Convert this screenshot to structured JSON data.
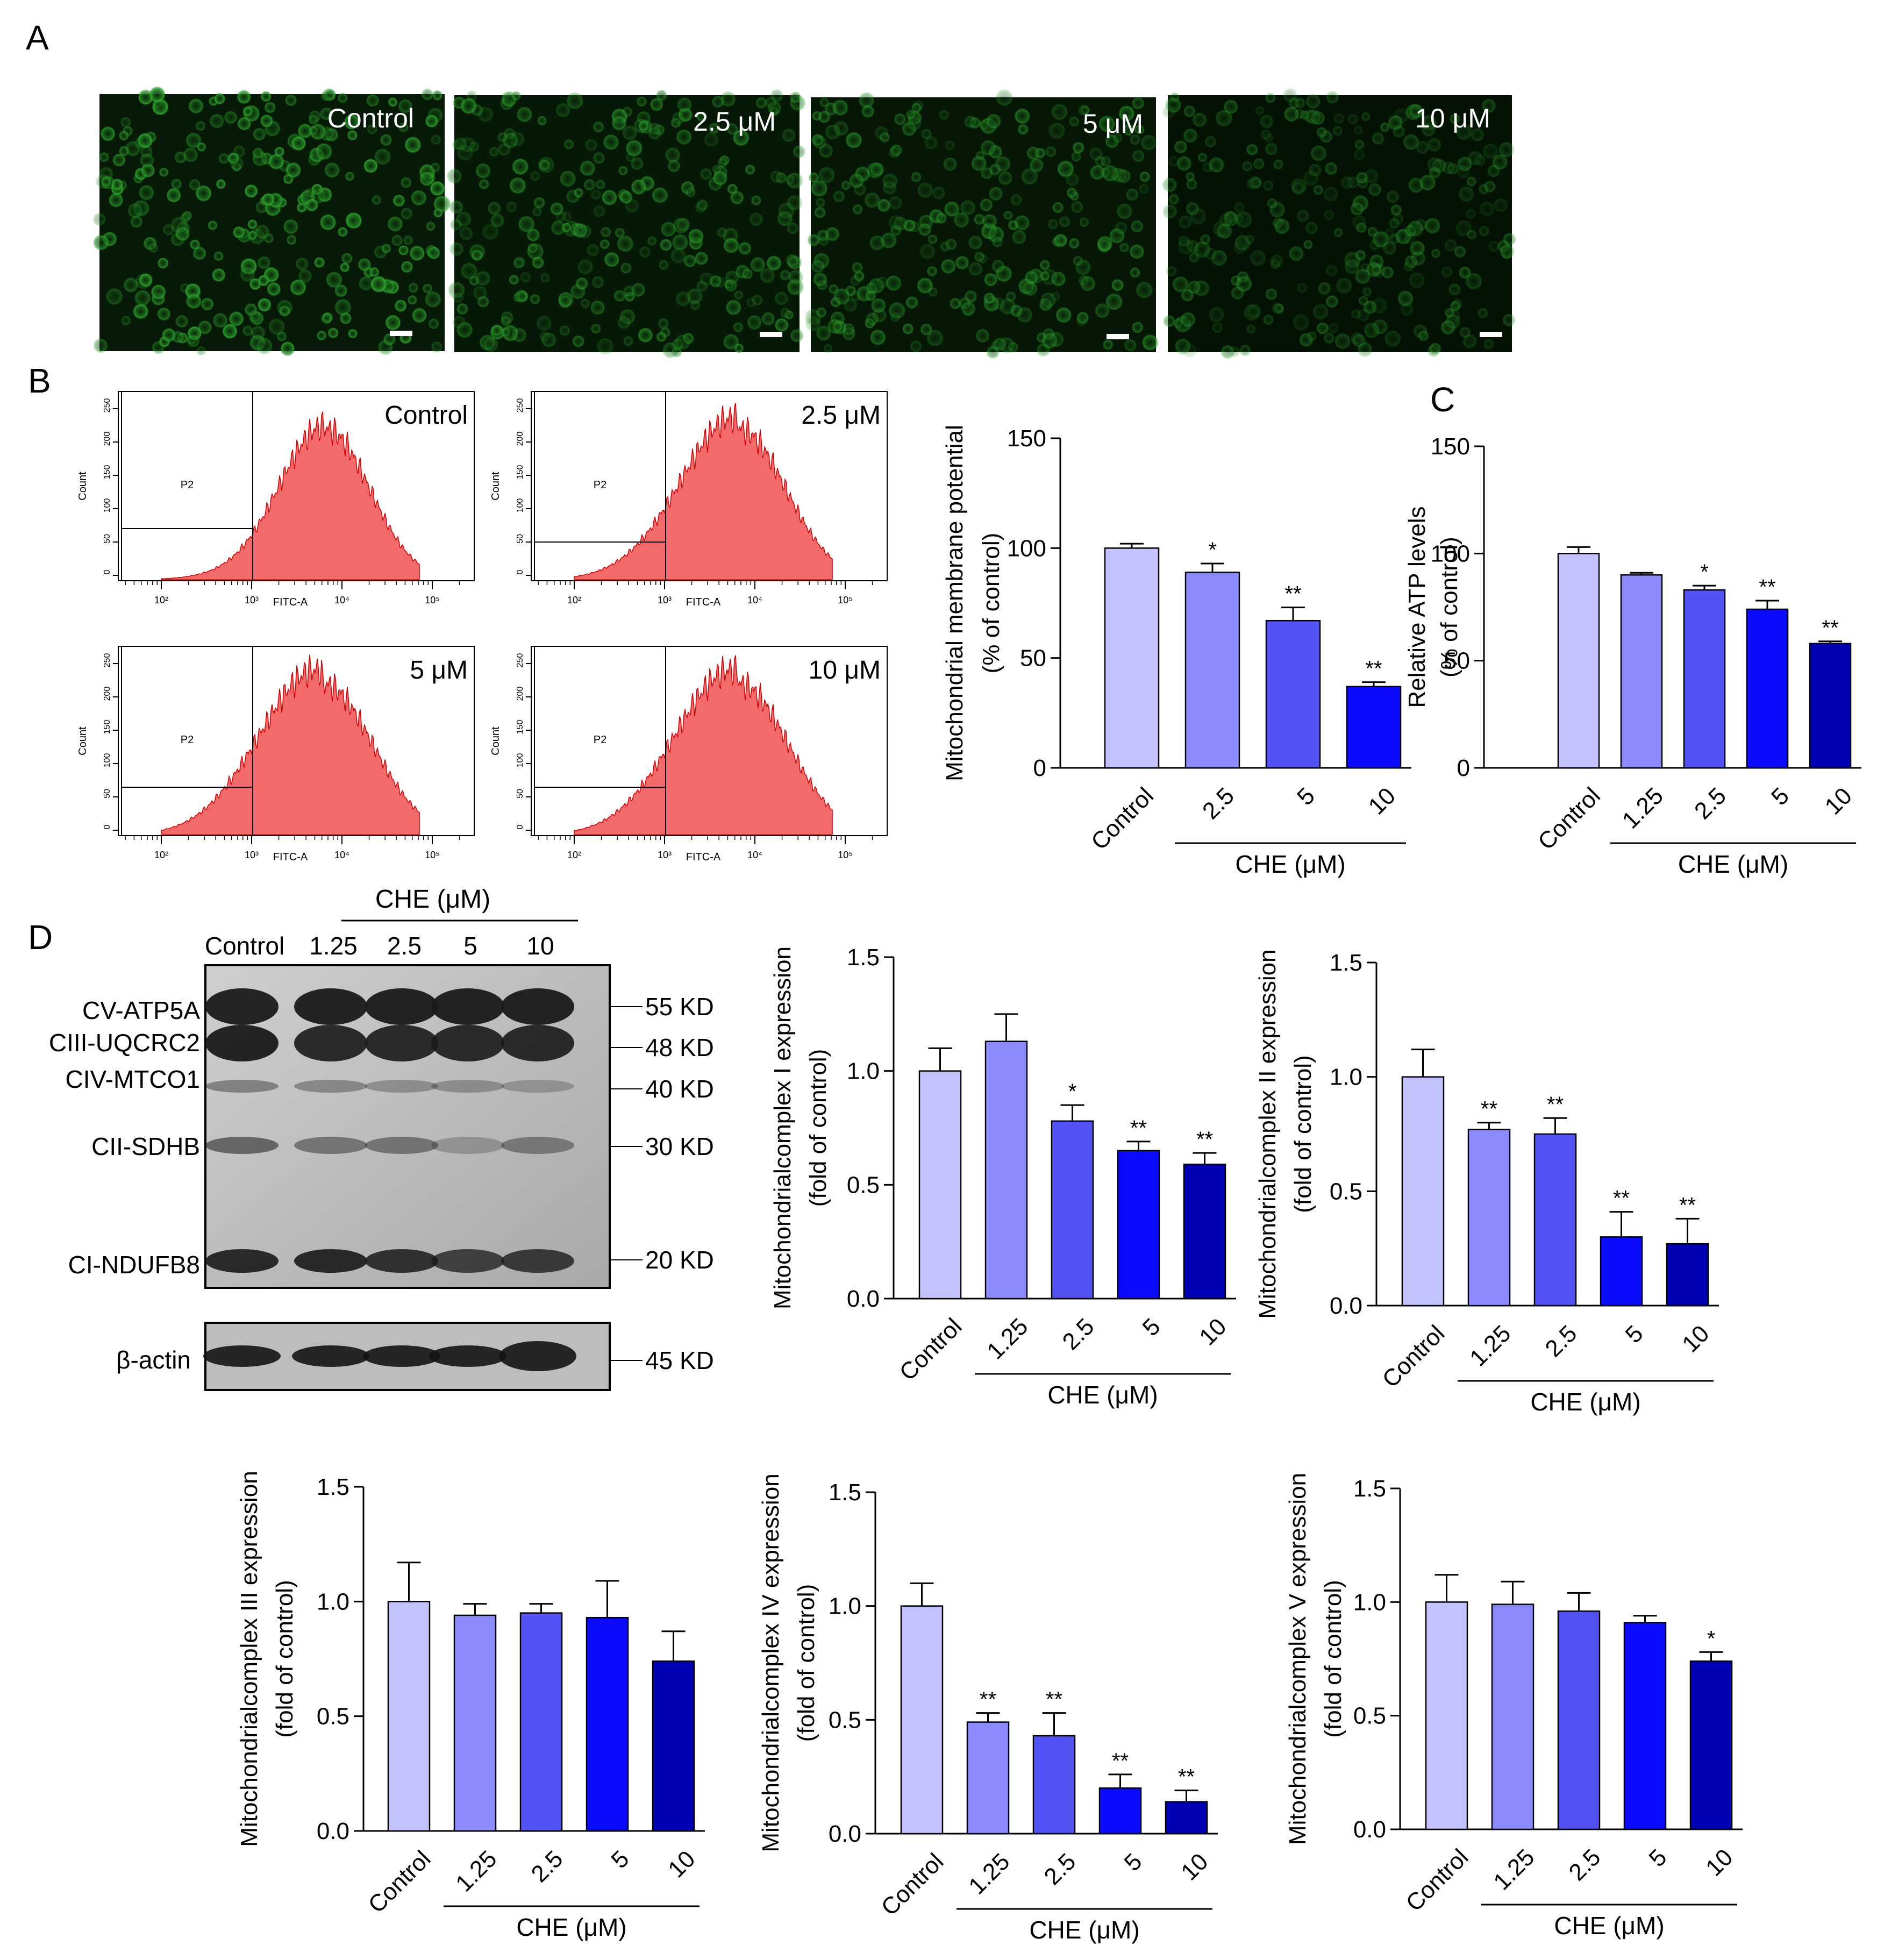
{
  "panels": {
    "A": {
      "letter": "A",
      "images": [
        {
          "label": "Control"
        },
        {
          "label": "2.5 μM"
        },
        {
          "label": "5 μM"
        },
        {
          "label": "10 μM"
        }
      ]
    },
    "B": {
      "letter": "B",
      "histograms": [
        {
          "label": "Control",
          "gate": "P2",
          "xlabel": "FITC-A",
          "ylabel": "Count"
        },
        {
          "label": "2.5 μM",
          "gate": "P2",
          "xlabel": "FITC-A",
          "ylabel": "Count"
        },
        {
          "label": "5 μM",
          "gate": "P2",
          "xlabel": "FITC-A",
          "ylabel": "Count"
        },
        {
          "label": "10 μM",
          "gate": "P2",
          "xlabel": "FITC-A",
          "ylabel": "Count"
        }
      ],
      "hist_x_ticks": [
        "10²",
        "10³",
        "10⁴",
        "10⁵"
      ],
      "hist_y_ticks": [
        "0",
        "50",
        "100",
        "150",
        "200",
        "250"
      ]
    },
    "C": {
      "letter": "C"
    },
    "D": {
      "letter": "D",
      "blot": {
        "group_label": "CHE (μM)",
        "lanes": [
          "Control",
          "1.25",
          "2.5",
          "5",
          "10"
        ],
        "bands": [
          "CV-ATP5A",
          "CIII-UQCRC2",
          "CIV-MTCO1",
          "CII-SDHB",
          "CI-NDUFB8"
        ],
        "loading": "β-actin",
        "markers": [
          "55 KD",
          "48 KD",
          "40 KD",
          "30 KD",
          "20 KD",
          "45 KD"
        ]
      }
    }
  },
  "chart_data": [
    {
      "id": "mmp",
      "type": "bar",
      "ylabel": [
        "Mitochondrial membrane potential",
        "(% of control)"
      ],
      "categories": [
        "Control",
        "2.5",
        "5",
        "10"
      ],
      "values": [
        100,
        89,
        67,
        37
      ],
      "errors": [
        2,
        4,
        6,
        2
      ],
      "significance": [
        "",
        "*",
        "**",
        "**"
      ],
      "ylim": [
        0,
        150
      ],
      "yticks": [
        "0",
        "50",
        "100",
        "150"
      ],
      "group_label": "CHE (μM)",
      "colors": [
        "#c2c2ff",
        "#8b8bff",
        "#5252f5",
        "#0a0aff"
      ]
    },
    {
      "id": "atp",
      "type": "bar",
      "ylabel": [
        "Relative ATP levels",
        "(% of control)"
      ],
      "categories": [
        "Control",
        "1.25",
        "2.5",
        "5",
        "10"
      ],
      "values": [
        100,
        90,
        83,
        74,
        58
      ],
      "errors": [
        3,
        1,
        2,
        4,
        1
      ],
      "significance": [
        "",
        "",
        "*",
        "**",
        "**"
      ],
      "ylim": [
        0,
        150
      ],
      "yticks": [
        "0",
        "50",
        "100",
        "150"
      ],
      "group_label": "CHE (μM)",
      "colors": [
        "#c2c2ff",
        "#8b8bff",
        "#5252f5",
        "#0a0aff",
        "#0000b4"
      ]
    },
    {
      "id": "c1",
      "type": "bar",
      "ylabel": [
        "Mitochondrialcomplex I expression",
        "(fold of control)"
      ],
      "categories": [
        "Control",
        "1.25",
        "2.5",
        "5",
        "10"
      ],
      "values": [
        1.0,
        1.13,
        0.78,
        0.65,
        0.59
      ],
      "errors": [
        0.1,
        0.12,
        0.07,
        0.04,
        0.05
      ],
      "significance": [
        "",
        "",
        "*",
        "**",
        "**"
      ],
      "ylim": [
        0,
        1.5
      ],
      "yticks": [
        "0.0",
        "0.5",
        "1.0",
        "1.5"
      ],
      "group_label": "CHE (μM)",
      "colors": [
        "#c2c2ff",
        "#8b8bff",
        "#5252f5",
        "#0a0aff",
        "#0000b4"
      ]
    },
    {
      "id": "c2",
      "type": "bar",
      "ylabel": [
        "Mitochondrialcomplex II expression",
        "(fold of control)"
      ],
      "categories": [
        "Control",
        "1.25",
        "2.5",
        "5",
        "10"
      ],
      "values": [
        1.0,
        0.77,
        0.75,
        0.3,
        0.27
      ],
      "errors": [
        0.12,
        0.03,
        0.07,
        0.11,
        0.11
      ],
      "significance": [
        "",
        "**",
        "**",
        "**",
        "**"
      ],
      "ylim": [
        0,
        1.5
      ],
      "yticks": [
        "0.0",
        "0.5",
        "1.0",
        "1.5"
      ],
      "group_label": "CHE (μM)",
      "colors": [
        "#c2c2ff",
        "#8b8bff",
        "#5252f5",
        "#0a0aff",
        "#0000b4"
      ]
    },
    {
      "id": "c3",
      "type": "bar",
      "ylabel": [
        "Mitochondrialcomplex III expression",
        "(fold of control)"
      ],
      "categories": [
        "Control",
        "1.25",
        "2.5",
        "5",
        "10"
      ],
      "values": [
        1.0,
        0.94,
        0.95,
        0.93,
        0.74
      ],
      "errors": [
        0.17,
        0.05,
        0.04,
        0.16,
        0.13
      ],
      "significance": [
        "",
        "",
        "",
        "",
        ""
      ],
      "ylim": [
        0,
        1.5
      ],
      "yticks": [
        "0.0",
        "0.5",
        "1.0",
        "1.5"
      ],
      "group_label": "CHE (μM)",
      "colors": [
        "#c2c2ff",
        "#8b8bff",
        "#5252f5",
        "#0a0aff",
        "#0000b4"
      ]
    },
    {
      "id": "c4",
      "type": "bar",
      "ylabel": [
        "Mitochondrialcomplex IV expression",
        "(fold of control)"
      ],
      "categories": [
        "Control",
        "1.25",
        "2.5",
        "5",
        "10"
      ],
      "values": [
        1.0,
        0.49,
        0.43,
        0.2,
        0.14
      ],
      "errors": [
        0.1,
        0.04,
        0.1,
        0.06,
        0.05
      ],
      "significance": [
        "",
        "**",
        "**",
        "**",
        "**"
      ],
      "ylim": [
        0,
        1.5
      ],
      "yticks": [
        "0.0",
        "0.5",
        "1.0",
        "1.5"
      ],
      "group_label": "CHE (μM)",
      "colors": [
        "#c2c2ff",
        "#8b8bff",
        "#5252f5",
        "#0a0aff",
        "#0000b4"
      ]
    },
    {
      "id": "c5",
      "type": "bar",
      "ylabel": [
        "Mitochondrialcomplex V expression",
        "(fold of control)"
      ],
      "categories": [
        "Control",
        "1.25",
        "2.5",
        "5",
        "10"
      ],
      "values": [
        1.0,
        0.99,
        0.96,
        0.91,
        0.74
      ],
      "errors": [
        0.12,
        0.1,
        0.08,
        0.03,
        0.04
      ],
      "significance": [
        "",
        "",
        "",
        "",
        "*"
      ],
      "ylim": [
        0,
        1.5
      ],
      "yticks": [
        "0.0",
        "0.5",
        "1.0",
        "1.5"
      ],
      "group_label": "CHE (μM)",
      "colors": [
        "#c2c2ff",
        "#8b8bff",
        "#5252f5",
        "#0a0aff",
        "#0000b4"
      ]
    }
  ]
}
